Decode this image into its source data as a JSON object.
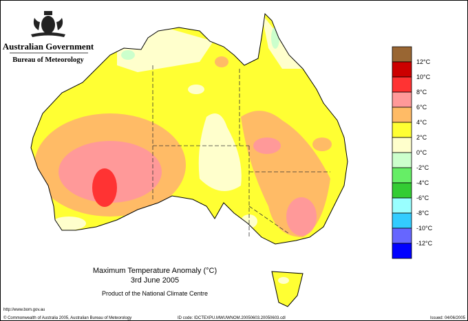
{
  "header": {
    "government": "Australian Government",
    "bureau": "Bureau of Meteorology"
  },
  "map": {
    "title": "Maximum Temperature Anomaly (°C)",
    "date": "3rd June 2005",
    "product": "Product of the National Climate Centre"
  },
  "legend": {
    "labels": [
      "12°C",
      "10°C",
      "8°C",
      "6°C",
      "4°C",
      "2°C",
      "0°C",
      "-2°C",
      "-4°C",
      "-6°C",
      "-8°C",
      "-10°C",
      "-12°C"
    ],
    "colors": [
      "#996633",
      "#cc0000",
      "#ff3333",
      "#ff9999",
      "#ffbb66",
      "#ffff33",
      "#ffffcc",
      "#ccffcc",
      "#66ee66",
      "#33cc33",
      "#99ffff",
      "#33ccff",
      "#6666ff",
      "#0000ff"
    ]
  },
  "footer": {
    "url": "http://www.bom.gov.au",
    "copyright": "© Commonwealth of Australia 2005, Australian Bureau of Meteorology",
    "id_code": "ID code: IDCTEXPU.MWUWNOM.20050603.20050603.cdl",
    "issued": "Issued: 04/06/2005"
  }
}
